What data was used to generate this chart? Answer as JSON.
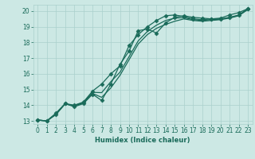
{
  "xlabel": "Humidex (Indice chaleur)",
  "bg_color": "#cce8e4",
  "grid_color": "#aad0cc",
  "line_color": "#1a6b5a",
  "xlim": [
    -0.5,
    23.5
  ],
  "ylim": [
    12.8,
    20.4
  ],
  "yticks": [
    13,
    14,
    15,
    16,
    17,
    18,
    19,
    20
  ],
  "xticks": [
    0,
    1,
    2,
    3,
    4,
    5,
    6,
    7,
    8,
    9,
    10,
    11,
    12,
    13,
    14,
    15,
    16,
    17,
    18,
    19,
    20,
    21,
    22,
    23
  ],
  "series": [
    {
      "x": [
        0,
        1,
        2,
        3,
        4,
        5,
        6,
        7,
        8,
        9,
        10,
        11,
        12,
        13,
        14,
        15,
        16,
        17,
        18,
        19,
        20,
        21,
        22,
        23
      ],
      "y": [
        13.05,
        13.0,
        13.5,
        14.1,
        13.9,
        14.1,
        14.7,
        14.3,
        15.35,
        16.6,
        17.45,
        18.75,
        18.85,
        18.6,
        19.25,
        19.6,
        19.7,
        19.6,
        19.55,
        19.5,
        19.55,
        19.75,
        19.9,
        20.15
      ],
      "marker": "D",
      "markersize": 2.5,
      "lw": 0.9
    },
    {
      "x": [
        0,
        1,
        2,
        3,
        4,
        5,
        6,
        7,
        8,
        9,
        10,
        11,
        12,
        13,
        14,
        15,
        16,
        17,
        18,
        19,
        20,
        21,
        22,
        23
      ],
      "y": [
        13.05,
        13.0,
        13.4,
        14.1,
        14.0,
        14.2,
        14.9,
        15.35,
        16.0,
        16.5,
        17.8,
        18.5,
        19.0,
        19.4,
        19.7,
        19.75,
        19.65,
        19.5,
        19.45,
        19.5,
        19.5,
        19.6,
        19.75,
        20.15
      ],
      "marker": "D",
      "markersize": 2.5,
      "lw": 0.9
    },
    {
      "x": [
        0,
        1,
        2,
        3,
        4,
        5,
        6,
        7,
        8,
        9,
        10,
        11,
        12,
        13,
        14,
        15,
        16,
        17,
        18,
        19,
        20,
        21,
        22,
        23
      ],
      "y": [
        13.05,
        13.0,
        13.45,
        14.1,
        13.95,
        14.15,
        14.75,
        14.5,
        15.1,
        15.9,
        16.9,
        17.9,
        18.5,
        18.9,
        19.15,
        19.35,
        19.5,
        19.4,
        19.35,
        19.4,
        19.45,
        19.55,
        19.7,
        20.1
      ],
      "marker": null,
      "markersize": 0,
      "lw": 0.9
    },
    {
      "x": [
        0,
        1,
        2,
        3,
        4,
        5,
        6,
        7,
        8,
        9,
        10,
        11,
        12,
        13,
        14,
        15,
        16,
        17,
        18,
        19,
        20,
        21,
        22,
        23
      ],
      "y": [
        13.05,
        13.0,
        13.42,
        14.08,
        13.97,
        14.17,
        14.82,
        14.8,
        15.5,
        16.1,
        17.1,
        18.1,
        18.7,
        19.1,
        19.4,
        19.55,
        19.58,
        19.45,
        19.4,
        19.45,
        19.48,
        19.58,
        19.72,
        20.12
      ],
      "marker": null,
      "markersize": 0,
      "lw": 0.9
    }
  ]
}
